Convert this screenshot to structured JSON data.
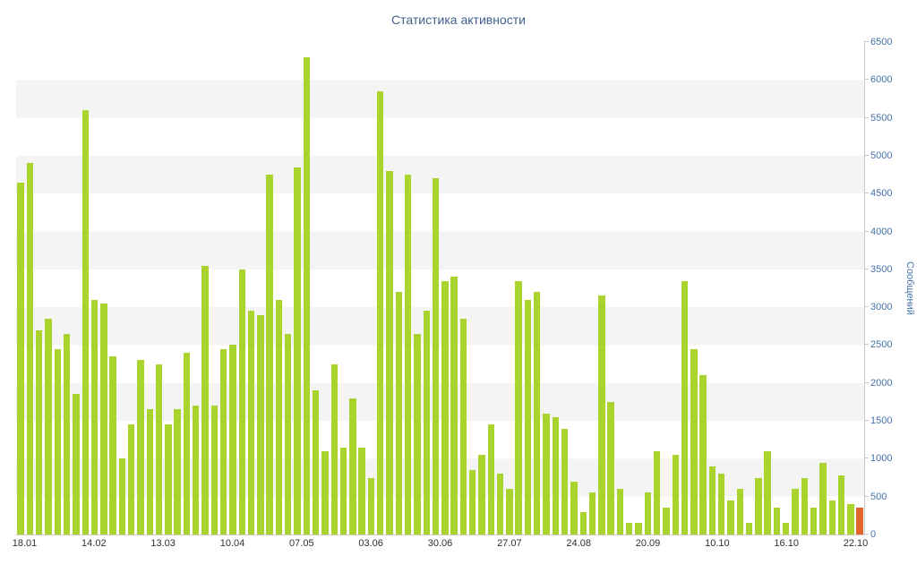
{
  "chart_data": {
    "type": "bar",
    "title": "Статистика активности",
    "xlabel": "",
    "ylabel": "Сообщений",
    "ylim": [
      0,
      6500
    ],
    "y_tick_step": 500,
    "y_ticks": [
      0,
      500,
      1000,
      1500,
      2000,
      2500,
      3000,
      3500,
      4000,
      4500,
      5000,
      5500,
      6000,
      6500
    ],
    "x_labels": [
      "18.01",
      "14.02",
      "13.03",
      "10.04",
      "07.05",
      "03.06",
      "30.06",
      "27.07",
      "24.08",
      "20.09",
      "10.10",
      "16.10",
      "22.10"
    ],
    "values": [
      4650,
      4900,
      2700,
      2850,
      2450,
      2650,
      1850,
      5600,
      3100,
      3050,
      2350,
      1000,
      1450,
      2300,
      1650,
      2250,
      1450,
      1650,
      2400,
      1700,
      3550,
      1700,
      2450,
      2500,
      3500,
      2950,
      2900,
      4750,
      3100,
      2650,
      4850,
      6300,
      1900,
      1100,
      2250,
      1150,
      1800,
      1150,
      750,
      5850,
      4800,
      3200,
      4750,
      2650,
      2950,
      4700,
      3350,
      3400,
      2850,
      850,
      1050,
      1450,
      800,
      600,
      3350,
      3100,
      3200,
      1600,
      1550,
      1400,
      700,
      300,
      550,
      3150,
      1750,
      600,
      150,
      150,
      550,
      1100,
      350,
      1050,
      3350,
      2450,
      2100,
      900,
      800,
      450,
      600,
      150,
      750,
      1100,
      350,
      150,
      600,
      750,
      350,
      950,
      450,
      780,
      400,
      350
    ],
    "highlight_last_bar": true,
    "legend": "none",
    "grid": "horizontal-bands",
    "background_bands": {
      "interval": 500,
      "colors": [
        "#ffffff",
        "#f4f4f4"
      ]
    },
    "colors": {
      "bar": "#a9d42d",
      "last_bar": "#e4632b",
      "title": "#3e5f8a",
      "y_axis_label": "#4572a7",
      "x_axis_label": "#2f2f2f",
      "band": "#f4f4f4",
      "axis_line": "#c9c9c9"
    }
  }
}
